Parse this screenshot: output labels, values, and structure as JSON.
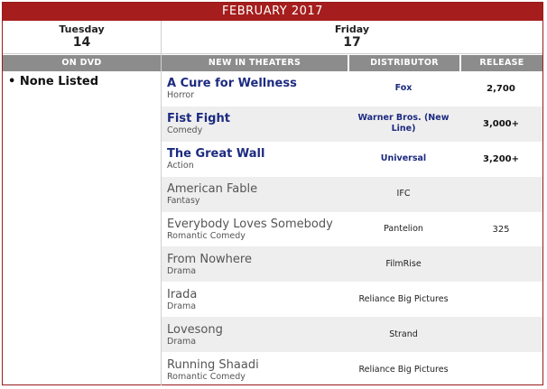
{
  "header": {
    "month": "FEBRUARY 2017"
  },
  "days": {
    "left": {
      "name": "Tuesday",
      "number": "14"
    },
    "right": {
      "name": "Friday",
      "number": "17"
    }
  },
  "dvd": {
    "header": "ON DVD",
    "none_text": "• None Listed"
  },
  "theaters": {
    "headers": {
      "title": "NEW IN THEATERS",
      "distributor": "DISTRIBUTOR",
      "release": "RELEASE"
    },
    "rows": [
      {
        "title": "A Cure for Wellness",
        "genre": "Horror",
        "distributor": "Fox",
        "release": "2,700"
      },
      {
        "title": "Fist Fight",
        "genre": "Comedy",
        "distributor": "Warner Bros. (New Line)",
        "release": "3,000+"
      },
      {
        "title": "The Great Wall",
        "genre": "Action",
        "distributor": "Universal",
        "release": "3,200+"
      },
      {
        "title": "American Fable",
        "genre": "Fantasy",
        "distributor": "IFC",
        "release": ""
      },
      {
        "title": "Everybody Loves Somebody",
        "genre": "Romantic Comedy",
        "distributor": "Pantelion",
        "release": "325"
      },
      {
        "title": "From Nowhere",
        "genre": "Drama",
        "distributor": "FilmRise",
        "release": ""
      },
      {
        "title": "Irada",
        "genre": "Drama",
        "distributor": "Reliance Big Pictures",
        "release": ""
      },
      {
        "title": "Lovesong",
        "genre": "Drama",
        "distributor": "Strand",
        "release": ""
      },
      {
        "title": "Running Shaadi",
        "genre": "Romantic Comedy",
        "distributor": "Reliance Big Pictures",
        "release": ""
      }
    ]
  },
  "colors": {
    "month_bar": "#a51d1d",
    "header_gray": "#8c8c8c",
    "major_title": "#1c2a80",
    "alt_row": "#eeeeee"
  }
}
